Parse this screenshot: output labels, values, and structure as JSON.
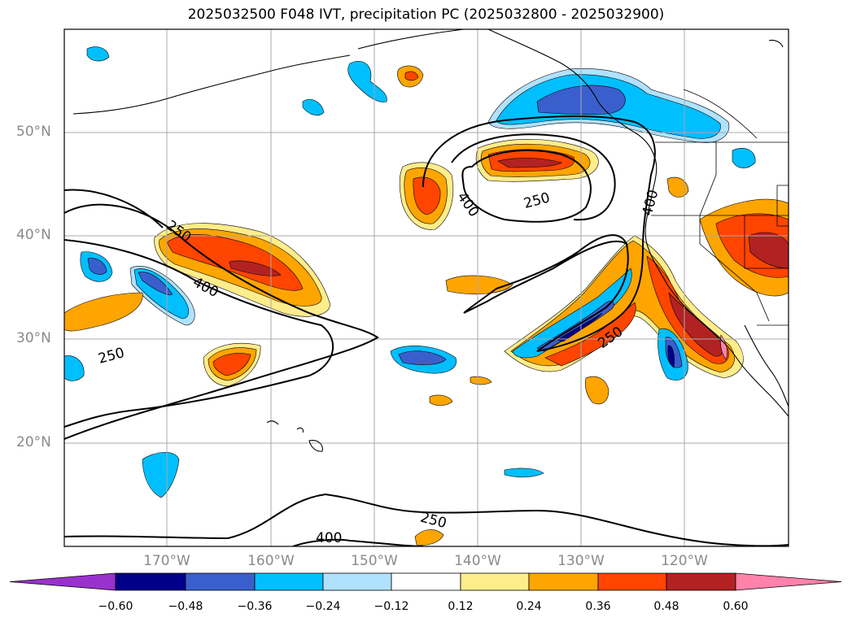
{
  "title": "2025032500 F048 IVT, precipitation PC (2025032800 - 2025032900)",
  "latitude_labels": [
    "50°N",
    "40°N",
    "30°N",
    "20°N"
  ],
  "longitude_labels": [
    "170°W",
    "160°W",
    "150°W",
    "140°W",
    "130°W",
    "120°W"
  ],
  "ivt_contour_labels": [
    "250",
    "400",
    "400",
    "250",
    "400",
    "250",
    "250",
    "400",
    "250"
  ],
  "colorbar": {
    "tick_labels": [
      "−0.60",
      "−0.48",
      "−0.36",
      "−0.24",
      "−0.12",
      "0.12",
      "0.24",
      "0.36",
      "0.48",
      "0.60"
    ],
    "bin_colors": [
      "#9932cc",
      "#00008b",
      "#3a5fcd",
      "#00bfff",
      "#b0e2ff",
      "#ffffff",
      "#ffec8b",
      "#ffa500",
      "#ff4500",
      "#b22222",
      "#ff82ab"
    ]
  }
}
